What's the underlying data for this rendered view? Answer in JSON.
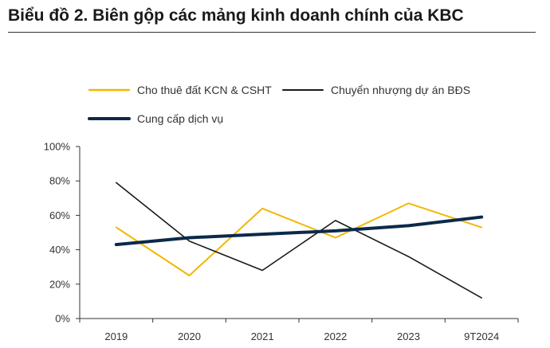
{
  "title": "Biểu đồ 2. Biên gộp các mảng kinh doanh chính của KBC",
  "chart_data": {
    "type": "line",
    "title": "Biểu đồ 2. Biên gộp các mảng kinh doanh chính của KBC",
    "categories": [
      "2019",
      "2020",
      "2021",
      "2022",
      "2023",
      "9T2024"
    ],
    "ylim": [
      0,
      100
    ],
    "yticks": [
      0,
      20,
      40,
      60,
      80,
      100
    ],
    "ytick_labels": [
      "0%",
      "20%",
      "40%",
      "60%",
      "80%",
      "100%"
    ],
    "xlabel": "",
    "ylabel": "",
    "series": [
      {
        "name": "Cho thuê đất KCN & CSHT",
        "color": "#F2B705",
        "values": [
          53,
          25,
          64,
          47,
          67,
          53
        ]
      },
      {
        "name": "Chuyển nhượng dự án BĐS",
        "color": "#1a1a1a",
        "values": [
          79,
          45,
          28,
          57,
          36,
          12
        ]
      },
      {
        "name": "Cung cấp dịch vụ",
        "color": "#0B2A4A",
        "values": [
          43,
          47,
          49,
          51,
          54,
          59
        ]
      }
    ]
  }
}
